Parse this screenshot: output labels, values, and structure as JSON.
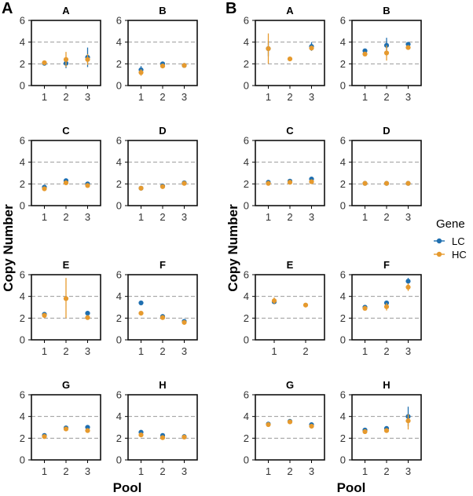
{
  "colors": {
    "LC": "#1f6fb0",
    "HC": "#e69a2e",
    "refline": "#9a9a9a"
  },
  "ylabel": "Copy Number",
  "xlabel": "Pool",
  "legend": {
    "title": "Gene",
    "items": [
      {
        "key": "LC",
        "label": "LC"
      },
      {
        "key": "HC",
        "label": "HC"
      }
    ]
  },
  "chart_data": [
    {
      "panel": "A",
      "type": "scatter",
      "ylim": [
        0,
        6
      ],
      "yticks": [
        0,
        2,
        4,
        6
      ],
      "ref_lines": [
        2,
        4
      ],
      "facets": [
        {
          "title": "A",
          "x": [
            1,
            2,
            3
          ],
          "series": [
            {
              "name": "LC",
              "values": [
                2.05,
                2.05,
                2.6
              ],
              "err_lo": [
                2.0,
                1.6,
                1.7
              ],
              "err_hi": [
                2.1,
                2.5,
                3.5
              ]
            },
            {
              "name": "HC",
              "values": [
                2.1,
                2.4,
                2.4
              ],
              "err_lo": [
                2.05,
                1.7,
                1.9
              ],
              "err_hi": [
                2.15,
                3.1,
                2.9
              ]
            }
          ]
        },
        {
          "title": "B",
          "x": [
            1,
            2,
            3
          ],
          "series": [
            {
              "name": "LC",
              "values": [
                1.45,
                2.0,
                1.85
              ],
              "err_lo": [
                1.1,
                1.9,
                1.8
              ],
              "err_hi": [
                1.8,
                2.1,
                1.9
              ]
            },
            {
              "name": "HC",
              "values": [
                1.2,
                1.8,
                1.85
              ],
              "err_lo": [
                0.9,
                1.7,
                1.8
              ],
              "err_hi": [
                1.5,
                1.9,
                1.9
              ]
            }
          ]
        },
        {
          "title": "C",
          "x": [
            1,
            2,
            3
          ],
          "series": [
            {
              "name": "LC",
              "values": [
                1.7,
                2.3,
                2.0
              ],
              "err_lo": [
                1.6,
                2.2,
                1.9
              ],
              "err_hi": [
                1.8,
                2.4,
                2.1
              ]
            },
            {
              "name": "HC",
              "values": [
                1.55,
                2.1,
                1.85
              ],
              "err_lo": [
                1.45,
                2.0,
                1.75
              ],
              "err_hi": [
                1.65,
                2.2,
                1.95
              ]
            }
          ]
        },
        {
          "title": "D",
          "x": [
            1,
            2,
            3
          ],
          "series": [
            {
              "name": "LC",
              "values": [
                1.6,
                1.8,
                2.1
              ],
              "err_lo": [
                1.55,
                1.75,
                2.05
              ],
              "err_hi": [
                1.65,
                1.85,
                2.15
              ]
            },
            {
              "name": "HC",
              "values": [
                1.6,
                1.75,
                2.05
              ],
              "err_lo": [
                1.55,
                1.7,
                2.0
              ],
              "err_hi": [
                1.65,
                1.8,
                2.1
              ]
            }
          ]
        },
        {
          "title": "E",
          "x": [
            1,
            2,
            3
          ],
          "series": [
            {
              "name": "LC",
              "values": [
                2.35,
                null,
                2.45
              ],
              "err_lo": [
                2.3,
                null,
                2.4
              ],
              "err_hi": [
                2.4,
                null,
                2.5
              ]
            },
            {
              "name": "HC",
              "values": [
                2.25,
                3.8,
                2.05
              ],
              "err_lo": [
                2.2,
                2.0,
                2.0
              ],
              "err_hi": [
                2.3,
                5.7,
                2.1
              ]
            }
          ]
        },
        {
          "title": "F",
          "x": [
            1,
            2,
            3
          ],
          "series": [
            {
              "name": "LC",
              "values": [
                3.4,
                2.15,
                1.7
              ],
              "err_lo": [
                3.35,
                2.1,
                1.6
              ],
              "err_hi": [
                3.45,
                2.2,
                1.8
              ]
            },
            {
              "name": "HC",
              "values": [
                2.45,
                2.05,
                1.6
              ],
              "err_lo": [
                2.4,
                2.0,
                1.5
              ],
              "err_hi": [
                2.5,
                2.1,
                1.7
              ]
            }
          ]
        },
        {
          "title": "G",
          "x": [
            1,
            2,
            3
          ],
          "series": [
            {
              "name": "LC",
              "values": [
                2.25,
                2.95,
                3.0
              ],
              "err_lo": [
                2.2,
                2.9,
                2.95
              ],
              "err_hi": [
                2.3,
                3.0,
                3.05
              ]
            },
            {
              "name": "HC",
              "values": [
                2.15,
                2.85,
                2.7
              ],
              "err_lo": [
                2.1,
                2.8,
                2.65
              ],
              "err_hi": [
                2.2,
                2.9,
                2.75
              ]
            }
          ]
        },
        {
          "title": "H",
          "x": [
            1,
            2,
            3
          ],
          "series": [
            {
              "name": "LC",
              "values": [
                2.55,
                2.25,
                2.15
              ],
              "err_lo": [
                2.5,
                2.2,
                2.1
              ],
              "err_hi": [
                2.6,
                2.3,
                2.2
              ]
            },
            {
              "name": "HC",
              "values": [
                2.3,
                2.05,
                2.1
              ],
              "err_lo": [
                2.25,
                2.0,
                2.05
              ],
              "err_hi": [
                2.35,
                2.1,
                2.15
              ]
            }
          ]
        }
      ]
    },
    {
      "panel": "B",
      "type": "scatter",
      "ylim": [
        0,
        6
      ],
      "yticks": [
        0,
        2,
        4,
        6
      ],
      "ref_lines": [
        2,
        4
      ],
      "facets": [
        {
          "title": "A",
          "x": [
            1,
            2,
            3
          ],
          "series": [
            {
              "name": "LC",
              "values": [
                3.4,
                null,
                3.6
              ],
              "err_lo": [
                2.7,
                null,
                3.2
              ],
              "err_hi": [
                4.1,
                null,
                4.0
              ]
            },
            {
              "name": "HC",
              "values": [
                3.4,
                2.45,
                3.45
              ],
              "err_lo": [
                2.0,
                2.4,
                3.3
              ],
              "err_hi": [
                4.8,
                2.5,
                3.6
              ]
            }
          ]
        },
        {
          "title": "B",
          "x": [
            1,
            2,
            3
          ],
          "series": [
            {
              "name": "LC",
              "values": [
                3.2,
                3.7,
                3.8
              ],
              "err_lo": [
                3.1,
                3.0,
                3.7
              ],
              "err_hi": [
                3.3,
                4.4,
                3.9
              ]
            },
            {
              "name": "HC",
              "values": [
                2.9,
                3.0,
                3.5
              ],
              "err_lo": [
                2.8,
                2.3,
                3.4
              ],
              "err_hi": [
                3.0,
                3.7,
                3.6
              ]
            }
          ]
        },
        {
          "title": "C",
          "x": [
            1,
            2,
            3
          ],
          "series": [
            {
              "name": "LC",
              "values": [
                2.15,
                2.25,
                2.45
              ],
              "err_lo": [
                2.1,
                2.2,
                2.4
              ],
              "err_hi": [
                2.2,
                2.3,
                2.5
              ]
            },
            {
              "name": "HC",
              "values": [
                2.05,
                2.15,
                2.2
              ],
              "err_lo": [
                2.0,
                2.1,
                2.1
              ],
              "err_hi": [
                2.1,
                2.2,
                2.3
              ]
            }
          ]
        },
        {
          "title": "D",
          "x": [
            1,
            2,
            3
          ],
          "series": [
            {
              "name": "LC",
              "values": [
                2.05,
                2.05,
                2.05
              ],
              "err_lo": [
                2.0,
                2.0,
                2.0
              ],
              "err_hi": [
                2.1,
                2.1,
                2.1
              ]
            },
            {
              "name": "HC",
              "values": [
                2.05,
                2.05,
                2.05
              ],
              "err_lo": [
                2.0,
                2.0,
                2.0
              ],
              "err_hi": [
                2.1,
                2.1,
                2.1
              ]
            }
          ]
        },
        {
          "title": "E",
          "x": [
            1,
            2
          ],
          "series": [
            {
              "name": "LC",
              "values": [
                3.5,
                null
              ],
              "err_lo": [
                3.3,
                null
              ],
              "err_hi": [
                3.7,
                null
              ]
            },
            {
              "name": "HC",
              "values": [
                3.6,
                3.2
              ],
              "err_lo": [
                3.3,
                3.15
              ],
              "err_hi": [
                3.9,
                3.25
              ]
            }
          ]
        },
        {
          "title": "F",
          "x": [
            1,
            2,
            3
          ],
          "series": [
            {
              "name": "LC",
              "values": [
                3.0,
                3.4,
                5.4
              ],
              "err_lo": [
                2.9,
                3.2,
                5.1
              ],
              "err_hi": [
                3.1,
                3.6,
                5.7
              ]
            },
            {
              "name": "HC",
              "values": [
                2.9,
                3.05,
                4.85
              ],
              "err_lo": [
                2.8,
                2.7,
                4.5
              ],
              "err_hi": [
                3.0,
                3.4,
                5.2
              ]
            }
          ]
        },
        {
          "title": "G",
          "x": [
            1,
            2,
            3
          ],
          "series": [
            {
              "name": "LC",
              "values": [
                3.3,
                3.55,
                3.25
              ],
              "err_lo": [
                3.25,
                3.5,
                3.2
              ],
              "err_hi": [
                3.35,
                3.6,
                3.3
              ]
            },
            {
              "name": "HC",
              "values": [
                3.25,
                3.5,
                3.1
              ],
              "err_lo": [
                3.2,
                3.45,
                3.05
              ],
              "err_hi": [
                3.3,
                3.55,
                3.15
              ]
            }
          ]
        },
        {
          "title": "H",
          "x": [
            1,
            2,
            3
          ],
          "series": [
            {
              "name": "LC",
              "values": [
                2.75,
                2.9,
                4.0
              ],
              "err_lo": [
                2.7,
                2.85,
                3.1
              ],
              "err_hi": [
                2.8,
                2.95,
                4.9
              ]
            },
            {
              "name": "HC",
              "values": [
                2.6,
                2.7,
                3.6
              ],
              "err_lo": [
                2.5,
                2.6,
                2.8
              ],
              "err_hi": [
                2.7,
                2.8,
                4.2
              ]
            }
          ]
        }
      ]
    }
  ]
}
